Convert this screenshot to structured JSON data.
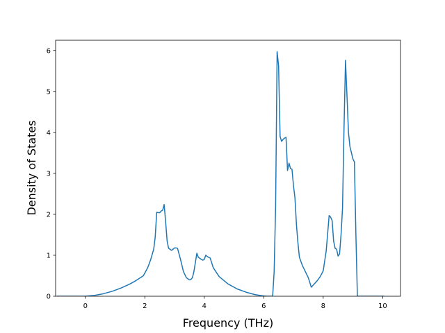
{
  "chart_data": {
    "type": "line",
    "title": "",
    "xlabel": "Frequency (THz)",
    "ylabel": "Density of States",
    "xlim": [
      -1.0,
      10.6
    ],
    "ylim": [
      0,
      6.25
    ],
    "xticks": [
      0,
      2,
      4,
      6,
      8,
      10
    ],
    "yticks": [
      0,
      1,
      2,
      3,
      4,
      5,
      6
    ],
    "grid": false,
    "legend": "none",
    "line_color": "#1f77b4",
    "series": [
      {
        "name": "",
        "x": [
          -0.95,
          -0.3,
          0.0,
          0.3,
          0.6,
          0.9,
          1.2,
          1.5,
          1.7,
          1.95,
          2.1,
          2.2,
          2.3,
          2.35,
          2.4,
          2.45,
          2.5,
          2.55,
          2.6,
          2.65,
          2.7,
          2.75,
          2.8,
          2.9,
          3.0,
          3.05,
          3.1,
          3.2,
          3.3,
          3.4,
          3.5,
          3.55,
          3.6,
          3.65,
          3.7,
          3.75,
          3.8,
          3.9,
          3.95,
          4.0,
          4.05,
          4.1,
          4.2,
          4.3,
          4.5,
          4.8,
          5.1,
          5.4,
          5.7,
          5.95,
          6.1,
          6.3,
          6.35,
          6.4,
          6.45,
          6.5,
          6.55,
          6.6,
          6.65,
          6.7,
          6.75,
          6.8,
          6.85,
          6.9,
          6.95,
          7.0,
          7.05,
          7.1,
          7.15,
          7.2,
          7.3,
          7.4,
          7.5,
          7.6,
          7.7,
          7.8,
          7.9,
          8.0,
          8.1,
          8.2,
          8.25,
          8.3,
          8.35,
          8.4,
          8.45,
          8.5,
          8.55,
          8.6,
          8.65,
          8.7,
          8.75,
          8.8,
          8.85,
          8.9,
          8.95,
          9.0,
          9.05,
          9.1,
          9.15,
          9.2,
          9.5,
          10.0,
          10.05
        ],
        "y": [
          0.0,
          0.0,
          0.0,
          0.02,
          0.06,
          0.12,
          0.2,
          0.3,
          0.38,
          0.5,
          0.7,
          0.9,
          1.15,
          1.45,
          2.05,
          2.04,
          2.04,
          2.08,
          2.1,
          2.24,
          1.82,
          1.35,
          1.17,
          1.12,
          1.18,
          1.18,
          1.17,
          0.9,
          0.6,
          0.45,
          0.4,
          0.41,
          0.45,
          0.6,
          0.82,
          1.05,
          0.95,
          0.9,
          0.88,
          0.9,
          1.0,
          0.97,
          0.93,
          0.7,
          0.48,
          0.3,
          0.18,
          0.1,
          0.04,
          0.01,
          0.0,
          0.0,
          0.6,
          2.2,
          5.97,
          5.62,
          3.9,
          3.78,
          3.83,
          3.86,
          3.88,
          3.07,
          3.25,
          3.12,
          3.1,
          2.7,
          2.4,
          1.75,
          1.3,
          0.95,
          0.75,
          0.6,
          0.45,
          0.22,
          0.3,
          0.38,
          0.48,
          0.62,
          1.1,
          1.97,
          1.93,
          1.85,
          1.35,
          1.17,
          1.15,
          0.98,
          1.03,
          1.5,
          2.15,
          4.1,
          5.76,
          4.9,
          4.0,
          3.65,
          3.5,
          3.35,
          3.28,
          1.5,
          0.0,
          0.0,
          0.0,
          0.0,
          0.0
        ]
      }
    ]
  }
}
